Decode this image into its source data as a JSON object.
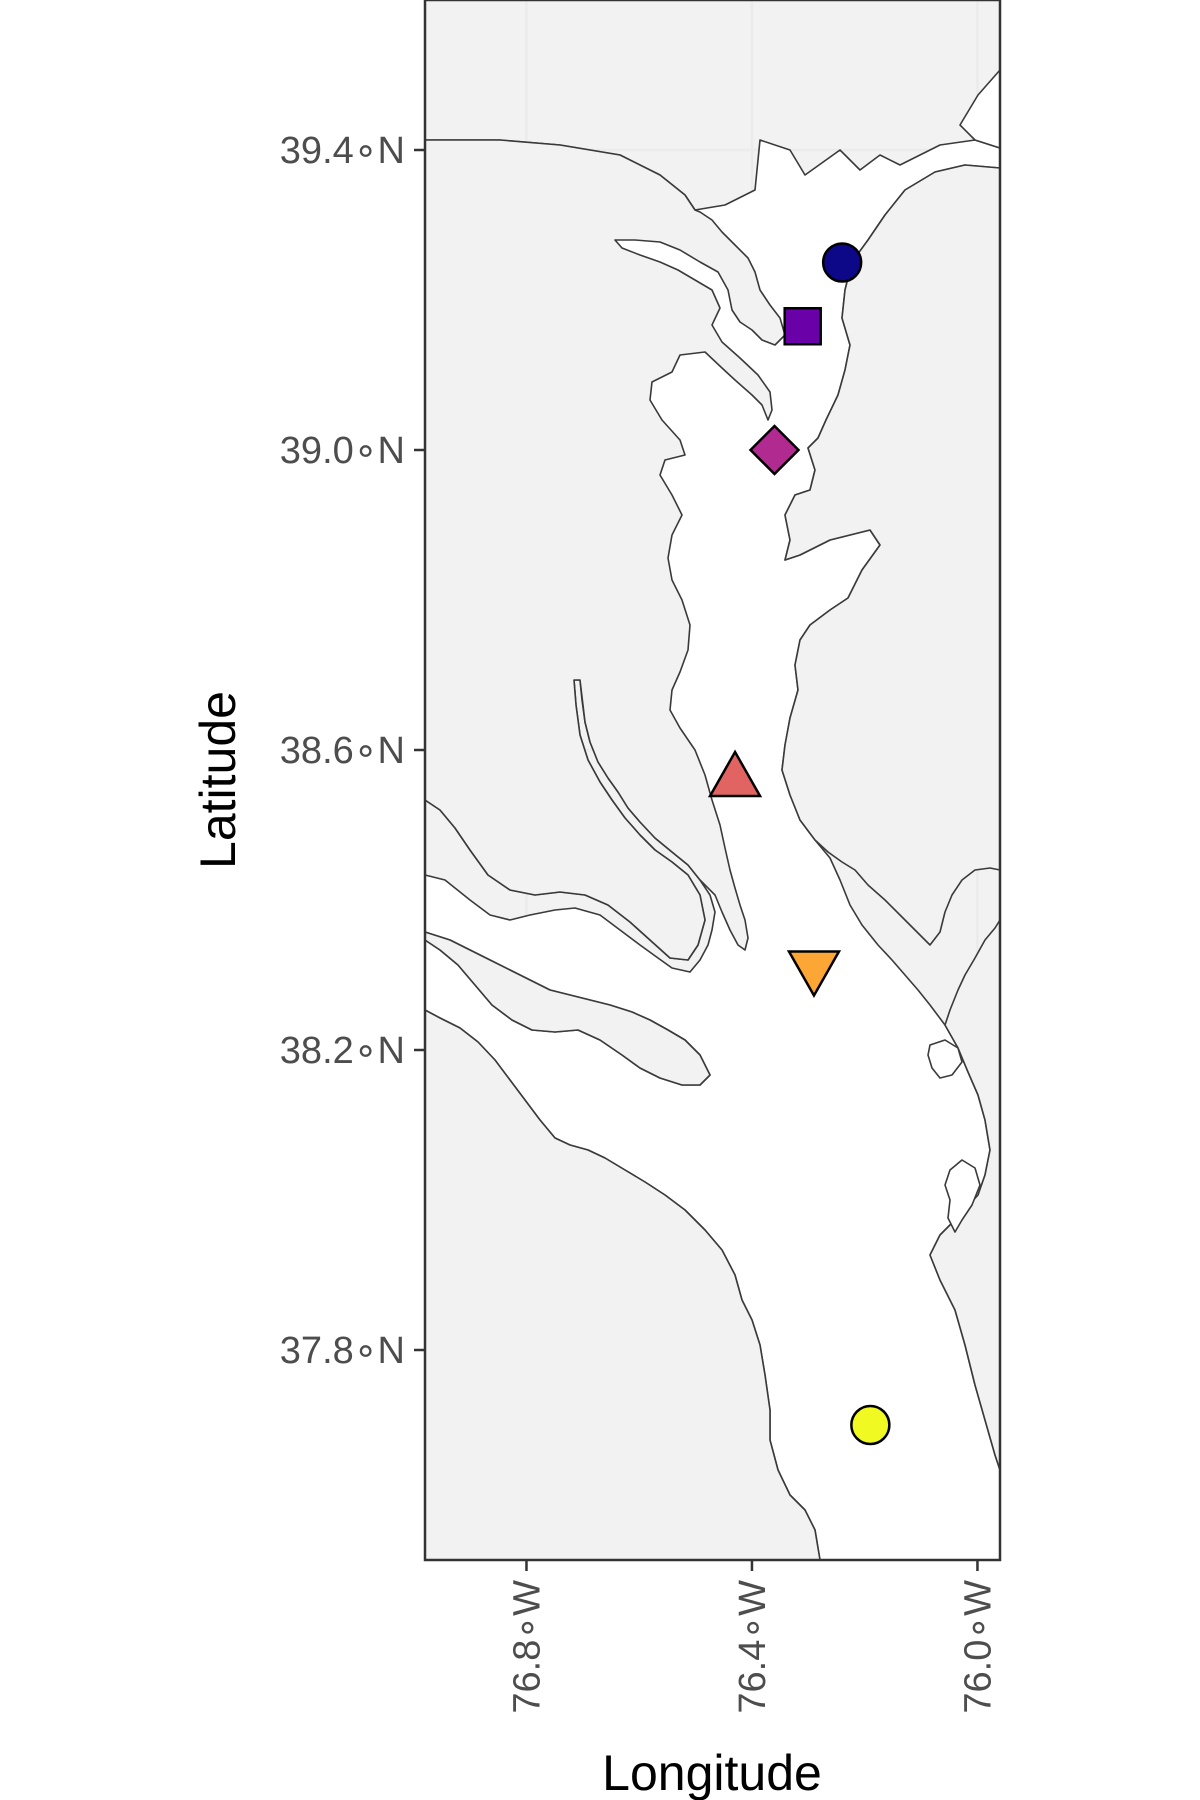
{
  "chart_data": {
    "type": "scatter",
    "xlabel": "Longitude",
    "ylabel": "Latitude",
    "xlim": [
      -76.98,
      -75.96
    ],
    "ylim": [
      37.52,
      39.6
    ],
    "x_ticks": [
      {
        "value": -76.8,
        "label": "76.8∘W"
      },
      {
        "value": -76.4,
        "label": "76.4∘W"
      },
      {
        "value": -76.0,
        "label": "76.0∘W"
      }
    ],
    "y_ticks": [
      {
        "value": 39.4,
        "label": "39.4∘N"
      },
      {
        "value": 39.0,
        "label": "39.0∘N"
      },
      {
        "value": 38.6,
        "label": "38.6∘N"
      },
      {
        "value": 38.2,
        "label": "38.2∘N"
      },
      {
        "value": 37.8,
        "label": "37.8∘N"
      }
    ],
    "grid": true,
    "land_color": "#f2f2f2",
    "water_color": "#ffffff",
    "coastline_color": "#3a3a3a",
    "points": [
      {
        "lon": -76.24,
        "lat": 39.25,
        "shape": "circle",
        "color": "#0d0887"
      },
      {
        "lon": -76.31,
        "lat": 39.165,
        "shape": "square",
        "color": "#6a00a8"
      },
      {
        "lon": -76.36,
        "lat": 39.0,
        "shape": "diamond",
        "color": "#b12a90"
      },
      {
        "lon": -76.43,
        "lat": 38.56,
        "shape": "triangle-up",
        "color": "#e16462"
      },
      {
        "lon": -76.29,
        "lat": 38.31,
        "shape": "triangle-down",
        "color": "#fca636"
      },
      {
        "lon": -76.19,
        "lat": 37.7,
        "shape": "circle",
        "color": "#f0f921"
      }
    ]
  }
}
